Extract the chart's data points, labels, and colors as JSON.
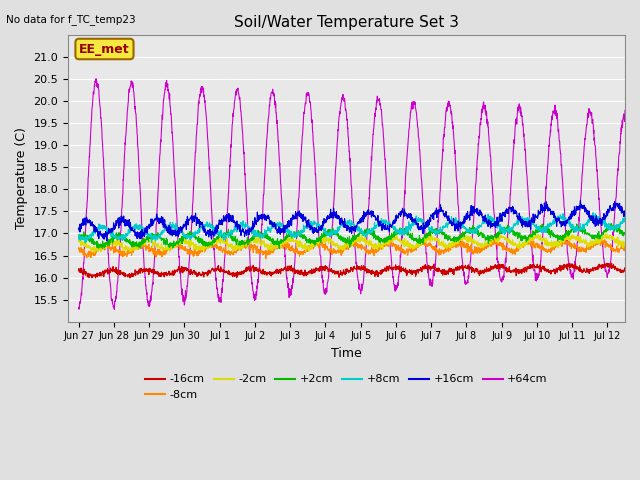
{
  "title": "Soil/Water Temperature Set 3",
  "xlabel": "Time",
  "ylabel": "Temperature (C)",
  "ylim": [
    15.0,
    21.5
  ],
  "yticks": [
    15.5,
    16.0,
    16.5,
    17.0,
    17.5,
    18.0,
    18.5,
    19.0,
    19.5,
    20.0,
    20.5,
    21.0
  ],
  "annotation_text": "No data for f_TC_temp23",
  "annotation_box": "EE_met",
  "bg_color": "#e0e0e0",
  "plot_bg_color": "#e8e8e8",
  "series": [
    {
      "label": "-16cm",
      "color": "#cc0000",
      "base": 16.1,
      "amp": 0.06,
      "trend": 0.12,
      "noise": 0.025
    },
    {
      "label": "-8cm",
      "color": "#ff8800",
      "base": 16.62,
      "amp": 0.09,
      "trend": 0.1,
      "noise": 0.03
    },
    {
      "label": "-2cm",
      "color": "#dddd00",
      "base": 16.72,
      "amp": 0.09,
      "trend": 0.13,
      "noise": 0.03
    },
    {
      "label": "+2cm",
      "color": "#00bb00",
      "base": 16.82,
      "amp": 0.11,
      "trend": 0.22,
      "noise": 0.03
    },
    {
      "label": "+8cm",
      "color": "#00cccc",
      "base": 17.0,
      "amp": 0.13,
      "trend": 0.25,
      "noise": 0.03
    },
    {
      "label": "+16cm",
      "color": "#0000dd",
      "base": 17.1,
      "amp": 0.18,
      "trend": 0.35,
      "noise": 0.04
    }
  ],
  "xtick_labels": [
    "Jun 27",
    "Jun 28",
    "Jun 29",
    "Jun 30",
    "Jul 1",
    "Jul 2",
    "Jul 3",
    "Jul 4",
    "Jul 5",
    "Jul 6",
    "Jul 7",
    "Jul 8",
    "Jul 9",
    "Jul 10",
    "Jul 11",
    "Jul 12"
  ],
  "xtick_positions": [
    0,
    1,
    2,
    3,
    4,
    5,
    6,
    7,
    8,
    9,
    10,
    11,
    12,
    13,
    14,
    15
  ],
  "num_points": 2000,
  "num_days": 15.5,
  "purple_color": "#cc00cc",
  "purple_base": 17.9,
  "purple_amp_start": 2.6,
  "purple_amp_end": 1.8
}
